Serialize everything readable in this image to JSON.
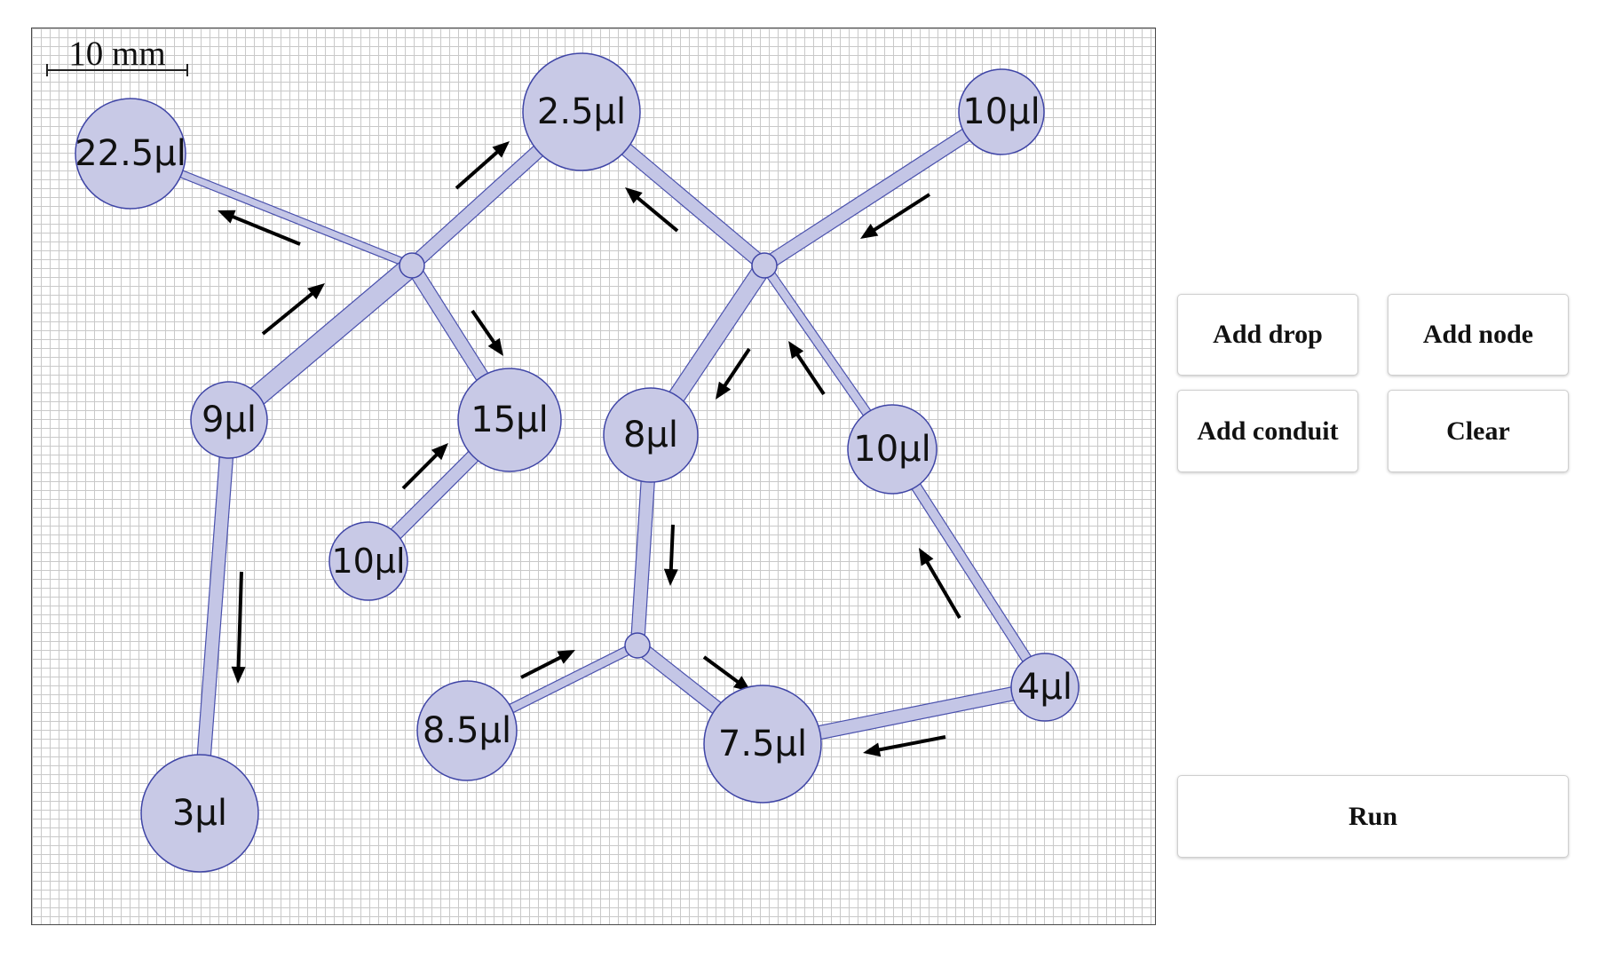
{
  "scale_bar": {
    "label": "10 mm"
  },
  "toolbar": {
    "add_drop_label": "Add drop",
    "add_node_label": "Add node",
    "add_conduit_label": "Add conduit",
    "clear_label": "Clear",
    "run_label": "Run"
  },
  "colors": {
    "drop_fill": "#c8c9e6",
    "drop_stroke": "#3f45a6",
    "conduit_fill": "#c4c6e6",
    "conduit_stroke": "#4a51ad",
    "arrow": "#000000"
  },
  "drops": [
    {
      "id": "d1",
      "label": "22.5µl"
    },
    {
      "id": "d2",
      "label": "2.5µl"
    },
    {
      "id": "d3",
      "label": "10µl"
    },
    {
      "id": "d4",
      "label": "9µl"
    },
    {
      "id": "d5",
      "label": "15µl"
    },
    {
      "id": "d6",
      "label": "8µl"
    },
    {
      "id": "d7",
      "label": "10µl"
    },
    {
      "id": "d8",
      "label": "10µl"
    },
    {
      "id": "d9",
      "label": "3µl"
    },
    {
      "id": "d10",
      "label": "8.5µl"
    },
    {
      "id": "d11",
      "label": "7.5µl"
    },
    {
      "id": "d12",
      "label": "4µl"
    }
  ],
  "nodes": [
    {
      "id": "nA"
    },
    {
      "id": "nB"
    },
    {
      "id": "nC"
    }
  ]
}
